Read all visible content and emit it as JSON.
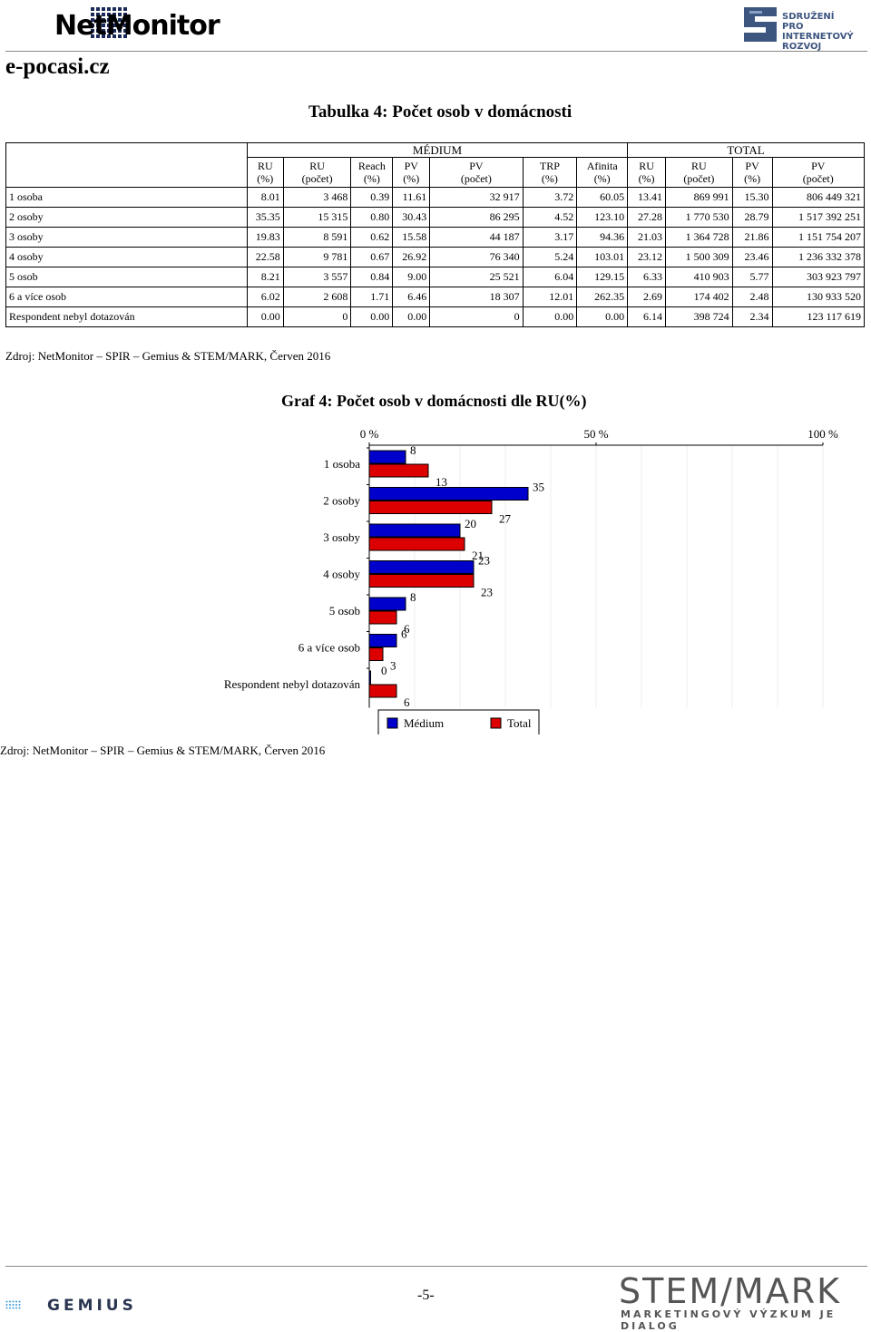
{
  "header": {
    "brand": "NetMonitor",
    "partner_line1": "SDRUŽENÍ",
    "partner_line2": "PRO INTERNETOVÝ",
    "partner_line3": "ROZVOJ",
    "site": "e-pocasi.cz"
  },
  "table": {
    "title": "Tabulka 4: Počet osob v domácnosti",
    "group_medium": "MÉDIUM",
    "group_total": "TOTAL",
    "columns": [
      [
        "RU",
        "(%)"
      ],
      [
        "RU",
        "(počet)"
      ],
      [
        "Reach",
        "(%)"
      ],
      [
        "PV",
        "(%)"
      ],
      [
        "PV",
        "(počet)"
      ],
      [
        "TRP",
        "(%)"
      ],
      [
        "Afinita",
        "(%)"
      ],
      [
        "RU",
        "(%)"
      ],
      [
        "RU",
        "(počet)"
      ],
      [
        "PV",
        "(%)"
      ],
      [
        "PV",
        "(počet)"
      ]
    ],
    "rows": [
      {
        "label": "1 osoba",
        "cells": [
          "8.01",
          "3 468",
          "0.39",
          "11.61",
          "32 917",
          "3.72",
          "60.05",
          "13.41",
          "869 991",
          "15.30",
          "806 449 321"
        ]
      },
      {
        "label": "2 osoby",
        "cells": [
          "35.35",
          "15 315",
          "0.80",
          "30.43",
          "86 295",
          "4.52",
          "123.10",
          "27.28",
          "1 770 530",
          "28.79",
          "1 517 392 251"
        ]
      },
      {
        "label": "3 osoby",
        "cells": [
          "19.83",
          "8 591",
          "0.62",
          "15.58",
          "44 187",
          "3.17",
          "94.36",
          "21.03",
          "1 364 728",
          "21.86",
          "1 151 754 207"
        ]
      },
      {
        "label": "4 osoby",
        "cells": [
          "22.58",
          "9 781",
          "0.67",
          "26.92",
          "76 340",
          "5.24",
          "103.01",
          "23.12",
          "1 500 309",
          "23.46",
          "1 236 332 378"
        ]
      },
      {
        "label": "5 osob",
        "cells": [
          "8.21",
          "3 557",
          "0.84",
          "9.00",
          "25 521",
          "6.04",
          "129.15",
          "6.33",
          "410 903",
          "5.77",
          "303 923 797"
        ]
      },
      {
        "label": "6 a více osob",
        "cells": [
          "6.02",
          "2 608",
          "1.71",
          "6.46",
          "18 307",
          "12.01",
          "262.35",
          "2.69",
          "174 402",
          "2.48",
          "130 933 520"
        ]
      },
      {
        "label": "Respondent nebyl dotazován",
        "cells": [
          "0.00",
          "0",
          "0.00",
          "0.00",
          "0",
          "0.00",
          "0.00",
          "6.14",
          "398 724",
          "2.34",
          "123 117 619"
        ]
      }
    ],
    "source": "Zdroj: NetMonitor – SPIR – Gemius & STEM/MARK, Červen 2016"
  },
  "chart_data": {
    "type": "bar",
    "orientation": "horizontal",
    "title": "Graf 4: Počet osob v domácnosti dle RU(%)",
    "categories": [
      "1 osoba",
      "2 osoby",
      "3 osoby",
      "4 osoby",
      "5 osob",
      "6 a více osob",
      "Respondent nebyl dotazován"
    ],
    "series": [
      {
        "name": "Médium",
        "color": "#0000cc",
        "values": [
          8,
          35,
          20,
          23,
          8,
          6,
          0
        ]
      },
      {
        "name": "Total",
        "color": "#dd0000",
        "values": [
          13,
          27,
          21,
          23,
          6,
          3,
          6
        ]
      }
    ],
    "xlim": [
      0,
      100
    ],
    "ticks": [
      "0 %",
      "50 %",
      "100 %"
    ],
    "grid": true,
    "legend": "bottom"
  },
  "chart_source": "Zdroj: NetMonitor – SPIR – Gemius & STEM/MARK, Červen 2016",
  "footer": {
    "left_brand": "GEMIUS",
    "page": "-5-",
    "right_brand": "STEM/MARK",
    "right_tagline": "MARKETINGOVÝ VÝZKUM JE DIALOG"
  }
}
